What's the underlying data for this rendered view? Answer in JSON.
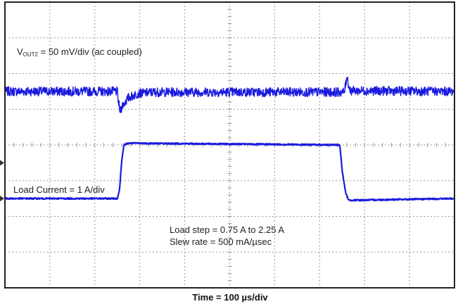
{
  "chart_data": {
    "type": "line",
    "title": "",
    "xlabel": "Time = 100 µs/div",
    "ylabel": "",
    "grid": true,
    "divisions": {
      "x": 10,
      "y": 8
    },
    "x_unit": "div",
    "xlim": [
      0,
      10
    ],
    "colors": {
      "trace": "#1a1adf",
      "grid": "#999999",
      "frame": "#222222",
      "background": "#ffffff"
    },
    "annotations": {
      "vout_prefix": "V",
      "vout_subscript": "OUT2",
      "vout_rest": " = 50 mV/div (ac coupled)",
      "load_current": "Load Current = 1 A/div",
      "load_step": "Load step = 0.75 A to 2.25 A",
      "slew_rate": "Slew rate = 500 mA/µsec"
    },
    "series": [
      {
        "key": "vout2",
        "unit_per_div": "50 mV/div",
        "ylim": [
          -3.5,
          4.5
        ],
        "points": [
          [
            0,
            2.0
          ],
          [
            2.5,
            2.0
          ],
          [
            2.52,
            1.75
          ],
          [
            2.56,
            1.45
          ],
          [
            2.62,
            1.62
          ],
          [
            2.75,
            1.82
          ],
          [
            2.95,
            1.94
          ],
          [
            3.3,
            1.98
          ],
          [
            7.55,
            1.98
          ],
          [
            7.58,
            2.2
          ],
          [
            7.61,
            2.45
          ],
          [
            7.64,
            2.2
          ],
          [
            7.68,
            2.02
          ],
          [
            10,
            2.0
          ]
        ],
        "noise_amplitude_div": 0.13
      },
      {
        "key": "load_current",
        "unit_per_div": "1 A/div",
        "ylim": [
          -2.5,
          5.5
        ],
        "points": [
          [
            0,
            0.0
          ],
          [
            2.5,
            0.0
          ],
          [
            2.55,
            0.25
          ],
          [
            2.6,
            1.1
          ],
          [
            2.65,
            1.5
          ],
          [
            2.75,
            1.55
          ],
          [
            7.45,
            1.5
          ],
          [
            7.5,
            0.8
          ],
          [
            7.58,
            0.15
          ],
          [
            7.65,
            -0.05
          ],
          [
            10,
            0.0
          ]
        ],
        "noise_amplitude_div": 0.02
      }
    ]
  }
}
